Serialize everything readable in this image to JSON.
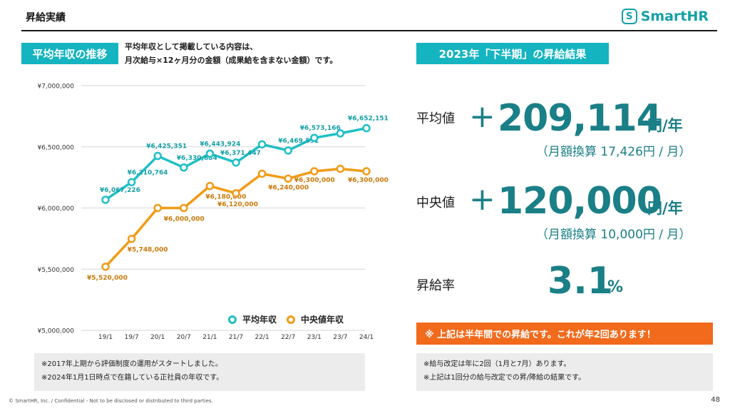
{
  "header": {
    "title": "昇給実績",
    "logo_text": "SmartHR",
    "logo_mark": "S"
  },
  "left": {
    "tag": "平均年収の推移",
    "note_line1": "平均年収として掲載している内容は、",
    "note_line2": "月次給与×12ヶ月分の金額（成果給を含まない金額）です。",
    "footnote1": "※2017年上期から評価制度の運用がスタートしました。",
    "footnote2": "※2024年1月1日時点で在籍している正社員の年収です。"
  },
  "right": {
    "tag": "2023年「下半期」の昇給結果",
    "avg_label": "平均値",
    "avg_sign": "+",
    "avg_value": "209,114",
    "avg_unit": "円/年",
    "avg_sub": "（月額換算  17,426円 / 月）",
    "median_label": "中央値",
    "median_sign": "+",
    "median_value": "120,000",
    "median_unit": "円/年",
    "median_sub": "（月額換算  10,000円 / 月）",
    "rate_label": "昇給率",
    "rate_value": "3.1",
    "rate_unit": "%",
    "alert": "※ 上記は半年間での昇給です。これが年2回あります！",
    "footnote1": "※給与改定は年に2回（1月と7月）あります。",
    "footnote2": "※上記は1回分の給与改定での昇/降給の結果です。"
  },
  "footer": {
    "copyright": "© SmartHR, Inc. / Confidential - Not to be disclosed or distributed to third parties.",
    "page": "48"
  },
  "colors": {
    "accent": "#14b4c0",
    "average": "#1fbfc6",
    "median": "#f29b17",
    "alert": "#f26a1b",
    "value_text": "#1a7f86"
  },
  "chart_data": {
    "type": "line",
    "categories": [
      "19/1",
      "19/7",
      "20/1",
      "20/7",
      "21/1",
      "21/7",
      "22/1",
      "22/7",
      "23/1",
      "23/7",
      "24/1"
    ],
    "ylim": [
      5000000,
      7000000
    ],
    "yticks": [
      "¥5,000,000",
      "¥5,500,000",
      "¥6,000,000",
      "¥6,500,000",
      "¥7,000,000"
    ],
    "ytick_values": [
      5000000,
      5500000,
      6000000,
      6500000,
      7000000
    ],
    "grid": true,
    "legend": "bottom",
    "series": [
      {
        "name": "平均年収",
        "color": "#1fbfc6",
        "values": [
          6067226,
          6210764,
          6425351,
          6330884,
          6443924,
          6371447,
          6520000,
          6469591,
          6573166,
          6610000,
          6652151
        ],
        "labels": [
          "¥6,067,226",
          "¥6,210,764",
          "¥6,425,351",
          "¥6,330,884",
          "¥6,443,924",
          "¥6,371,447",
          "",
          "¥6,469,591",
          "¥6,573,166",
          "",
          "¥6,652,151"
        ]
      },
      {
        "name": "中央値年収",
        "color": "#f29b17",
        "values": [
          5520000,
          5748000,
          6000000,
          6000000,
          6180000,
          6120000,
          6280000,
          6240000,
          6300000,
          6320000,
          6300000
        ],
        "labels": [
          "¥5,520,000",
          "¥5,748,000",
          "",
          "¥6,000,000",
          "¥6,180,000",
          "¥6,120,000",
          "",
          "¥6,240,000",
          "¥6,300,000",
          "",
          "¥6,300,000"
        ]
      }
    ]
  }
}
